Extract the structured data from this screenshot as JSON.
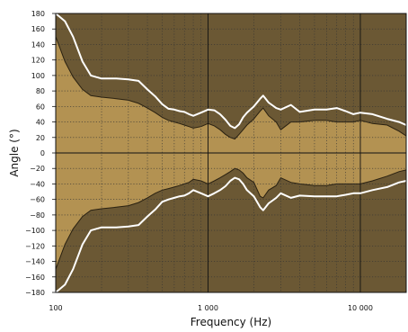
{
  "chart_data": {
    "type": "area",
    "xlabel": "Frequency (Hz)",
    "ylabel": "Angle (°)",
    "x_scale": "log",
    "xlim": [
      100,
      20000
    ],
    "ylim": [
      -180,
      180
    ],
    "x_ticks": [
      {
        "value": 100,
        "label": "100"
      },
      {
        "value": 1000,
        "label": "1 000"
      },
      {
        "value": 10000,
        "label": "10 000"
      }
    ],
    "y_ticks": [
      180,
      160,
      140,
      120,
      100,
      80,
      60,
      40,
      20,
      0,
      -20,
      -40,
      -60,
      -80,
      -100,
      -120,
      -140,
      -160,
      -180
    ],
    "grid": true,
    "colors": {
      "background": "#b39252",
      "band": "#6b5834",
      "median_line": "#ffffff",
      "band_edge": "#2a2111",
      "grid_major": "#111111",
      "grid_minor": "#333333"
    },
    "bands": [
      {
        "upper": [
          [
            100,
            180
          ],
          [
            115,
            180
          ],
          [
            130,
            180
          ],
          [
            150,
            180
          ],
          [
            170,
            180
          ],
          [
            200,
            180
          ],
          [
            250,
            180
          ],
          [
            300,
            180
          ],
          [
            350,
            180
          ],
          [
            400,
            180
          ],
          [
            450,
            180
          ],
          [
            500,
            180
          ],
          [
            550,
            180
          ],
          [
            600,
            180
          ],
          [
            650,
            180
          ],
          [
            700,
            180
          ],
          [
            750,
            180
          ],
          [
            800,
            180
          ],
          [
            900,
            180
          ],
          [
            1000,
            180
          ],
          [
            1100,
            180
          ],
          [
            1200,
            180
          ],
          [
            1300,
            180
          ],
          [
            1400,
            180
          ],
          [
            1500,
            180
          ],
          [
            1600,
            180
          ],
          [
            1700,
            180
          ],
          [
            1800,
            180
          ],
          [
            2000,
            180
          ],
          [
            2200,
            180
          ],
          [
            2300,
            180
          ],
          [
            2500,
            180
          ],
          [
            2800,
            180
          ],
          [
            3000,
            180
          ],
          [
            3500,
            180
          ],
          [
            4000,
            180
          ],
          [
            5000,
            180
          ],
          [
            6000,
            180
          ],
          [
            7000,
            180
          ],
          [
            8000,
            180
          ],
          [
            9000,
            180
          ],
          [
            10000,
            180
          ],
          [
            12000,
            180
          ],
          [
            15000,
            180
          ],
          [
            18000,
            180
          ],
          [
            20000,
            180
          ]
        ],
        "median": [
          [
            100,
            180
          ],
          [
            115,
            170
          ],
          [
            130,
            150
          ],
          [
            150,
            118
          ],
          [
            170,
            100
          ],
          [
            200,
            96
          ],
          [
            250,
            96
          ],
          [
            300,
            95
          ],
          [
            350,
            93
          ],
          [
            400,
            82
          ],
          [
            450,
            73
          ],
          [
            500,
            63
          ],
          [
            550,
            57
          ],
          [
            600,
            56
          ],
          [
            650,
            54
          ],
          [
            700,
            53
          ],
          [
            750,
            50
          ],
          [
            800,
            48
          ],
          [
            900,
            52
          ],
          [
            1000,
            56
          ],
          [
            1100,
            55
          ],
          [
            1200,
            50
          ],
          [
            1300,
            43
          ],
          [
            1400,
            35
          ],
          [
            1500,
            32
          ],
          [
            1600,
            37
          ],
          [
            1700,
            46
          ],
          [
            1800,
            52
          ],
          [
            2000,
            60
          ],
          [
            2200,
            70
          ],
          [
            2300,
            74
          ],
          [
            2500,
            65
          ],
          [
            2800,
            58
          ],
          [
            3000,
            56
          ],
          [
            3500,
            62
          ],
          [
            4000,
            53
          ],
          [
            5000,
            56
          ],
          [
            6000,
            56
          ],
          [
            7000,
            58
          ],
          [
            8000,
            54
          ],
          [
            9000,
            50
          ],
          [
            10000,
            52
          ],
          [
            12000,
            50
          ],
          [
            15000,
            44
          ],
          [
            18000,
            40
          ],
          [
            20000,
            36
          ]
        ],
        "lower": [
          [
            100,
            150
          ],
          [
            115,
            118
          ],
          [
            130,
            98
          ],
          [
            150,
            82
          ],
          [
            170,
            74
          ],
          [
            200,
            72
          ],
          [
            250,
            70
          ],
          [
            300,
            68
          ],
          [
            350,
            64
          ],
          [
            400,
            58
          ],
          [
            450,
            52
          ],
          [
            500,
            46
          ],
          [
            550,
            42
          ],
          [
            600,
            40
          ],
          [
            650,
            38
          ],
          [
            700,
            36
          ],
          [
            750,
            34
          ],
          [
            800,
            32
          ],
          [
            900,
            34
          ],
          [
            1000,
            38
          ],
          [
            1100,
            35
          ],
          [
            1200,
            30
          ],
          [
            1300,
            24
          ],
          [
            1400,
            20
          ],
          [
            1500,
            18
          ],
          [
            1600,
            24
          ],
          [
            1700,
            30
          ],
          [
            1800,
            36
          ],
          [
            2000,
            44
          ],
          [
            2200,
            54
          ],
          [
            2300,
            58
          ],
          [
            2500,
            48
          ],
          [
            2800,
            40
          ],
          [
            3000,
            30
          ],
          [
            3500,
            40
          ],
          [
            4000,
            40
          ],
          [
            5000,
            42
          ],
          [
            6000,
            42
          ],
          [
            7000,
            40
          ],
          [
            8000,
            40
          ],
          [
            9000,
            40
          ],
          [
            10000,
            42
          ],
          [
            12000,
            38
          ],
          [
            15000,
            36
          ],
          [
            18000,
            28
          ],
          [
            20000,
            22
          ]
        ]
      },
      {
        "upper": [
          [
            100,
            -150
          ],
          [
            115,
            -118
          ],
          [
            130,
            -98
          ],
          [
            150,
            -82
          ],
          [
            170,
            -74
          ],
          [
            200,
            -72
          ],
          [
            250,
            -70
          ],
          [
            300,
            -68
          ],
          [
            350,
            -64
          ],
          [
            400,
            -58
          ],
          [
            450,
            -52
          ],
          [
            500,
            -48
          ],
          [
            550,
            -46
          ],
          [
            600,
            -44
          ],
          [
            650,
            -42
          ],
          [
            700,
            -40
          ],
          [
            750,
            -38
          ],
          [
            800,
            -34
          ],
          [
            900,
            -36
          ],
          [
            1000,
            -40
          ],
          [
            1100,
            -36
          ],
          [
            1200,
            -32
          ],
          [
            1300,
            -28
          ],
          [
            1400,
            -24
          ],
          [
            1500,
            -20
          ],
          [
            1600,
            -22
          ],
          [
            1700,
            -26
          ],
          [
            1800,
            -32
          ],
          [
            2000,
            -38
          ],
          [
            2200,
            -56
          ],
          [
            2300,
            -58
          ],
          [
            2500,
            -48
          ],
          [
            2800,
            -42
          ],
          [
            3000,
            -32
          ],
          [
            3500,
            -38
          ],
          [
            4000,
            -40
          ],
          [
            5000,
            -42
          ],
          [
            6000,
            -42
          ],
          [
            7000,
            -40
          ],
          [
            8000,
            -40
          ],
          [
            9000,
            -40
          ],
          [
            10000,
            -40
          ],
          [
            12000,
            -36
          ],
          [
            15000,
            -30
          ],
          [
            18000,
            -24
          ],
          [
            20000,
            -22
          ]
        ],
        "median": [
          [
            100,
            -180
          ],
          [
            115,
            -170
          ],
          [
            130,
            -150
          ],
          [
            150,
            -118
          ],
          [
            170,
            -100
          ],
          [
            200,
            -96
          ],
          [
            250,
            -96
          ],
          [
            300,
            -95
          ],
          [
            350,
            -93
          ],
          [
            400,
            -82
          ],
          [
            450,
            -73
          ],
          [
            500,
            -63
          ],
          [
            550,
            -60
          ],
          [
            600,
            -58
          ],
          [
            650,
            -56
          ],
          [
            700,
            -55
          ],
          [
            750,
            -52
          ],
          [
            800,
            -48
          ],
          [
            900,
            -52
          ],
          [
            1000,
            -56
          ],
          [
            1100,
            -52
          ],
          [
            1200,
            -48
          ],
          [
            1300,
            -43
          ],
          [
            1400,
            -36
          ],
          [
            1500,
            -32
          ],
          [
            1600,
            -34
          ],
          [
            1700,
            -40
          ],
          [
            1800,
            -48
          ],
          [
            2000,
            -56
          ],
          [
            2200,
            -70
          ],
          [
            2300,
            -74
          ],
          [
            2500,
            -65
          ],
          [
            2800,
            -58
          ],
          [
            3000,
            -52
          ],
          [
            3500,
            -58
          ],
          [
            4000,
            -55
          ],
          [
            5000,
            -56
          ],
          [
            6000,
            -56
          ],
          [
            7000,
            -56
          ],
          [
            8000,
            -54
          ],
          [
            9000,
            -52
          ],
          [
            10000,
            -52
          ],
          [
            12000,
            -48
          ],
          [
            15000,
            -44
          ],
          [
            18000,
            -38
          ],
          [
            20000,
            -36
          ]
        ],
        "lower": [
          [
            100,
            -180
          ],
          [
            115,
            -180
          ],
          [
            130,
            -180
          ],
          [
            150,
            -180
          ],
          [
            170,
            -180
          ],
          [
            200,
            -180
          ],
          [
            250,
            -180
          ],
          [
            300,
            -180
          ],
          [
            350,
            -180
          ],
          [
            400,
            -180
          ],
          [
            450,
            -180
          ],
          [
            500,
            -180
          ],
          [
            550,
            -180
          ],
          [
            600,
            -180
          ],
          [
            650,
            -180
          ],
          [
            700,
            -180
          ],
          [
            750,
            -180
          ],
          [
            800,
            -180
          ],
          [
            900,
            -180
          ],
          [
            1000,
            -180
          ],
          [
            1100,
            -180
          ],
          [
            1200,
            -180
          ],
          [
            1300,
            -180
          ],
          [
            1400,
            -180
          ],
          [
            1500,
            -180
          ],
          [
            1600,
            -180
          ],
          [
            1700,
            -180
          ],
          [
            1800,
            -180
          ],
          [
            2000,
            -180
          ],
          [
            2200,
            -180
          ],
          [
            2300,
            -180
          ],
          [
            2500,
            -180
          ],
          [
            2800,
            -180
          ],
          [
            3000,
            -180
          ],
          [
            3500,
            -180
          ],
          [
            4000,
            -180
          ],
          [
            5000,
            -180
          ],
          [
            6000,
            -180
          ],
          [
            7000,
            -180
          ],
          [
            8000,
            -180
          ],
          [
            9000,
            -180
          ],
          [
            10000,
            -180
          ],
          [
            12000,
            -180
          ],
          [
            15000,
            -180
          ],
          [
            18000,
            -180
          ],
          [
            20000,
            -180
          ]
        ]
      }
    ]
  }
}
